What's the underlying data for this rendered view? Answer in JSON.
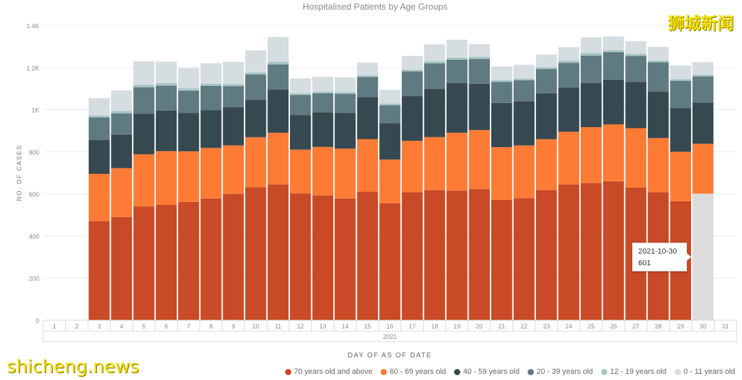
{
  "chart_data": {
    "type": "bar",
    "stacked": true,
    "title": "Hospitalised Patients by Age Groups",
    "ylabel": "NO. OF CASES",
    "xlabel": "DAY OF AS OF DATE",
    "year_label": "2021",
    "ylim": [
      0,
      1400
    ],
    "yticks": [
      {
        "value": 0,
        "label": "0"
      },
      {
        "value": 200,
        "label": "200"
      },
      {
        "value": 400,
        "label": "400"
      },
      {
        "value": 600,
        "label": "600"
      },
      {
        "value": 800,
        "label": "800"
      },
      {
        "value": 1000,
        "label": "1K"
      },
      {
        "value": 1200,
        "label": "1.2K"
      },
      {
        "value": 1400,
        "label": "1.4K"
      }
    ],
    "categories": [
      "1",
      "2",
      "3",
      "4",
      "5",
      "6",
      "7",
      "8",
      "9",
      "10",
      "11",
      "12",
      "13",
      "14",
      "15",
      "16",
      "17",
      "18",
      "19",
      "20",
      "21",
      "22",
      "23",
      "24",
      "25",
      "26",
      "27",
      "28",
      "29",
      "30",
      "31"
    ],
    "grid": true,
    "legend_position": "bottom",
    "series": [
      {
        "name": "70 years old and above",
        "color": "#c94a26",
        "values": [
          null,
          null,
          470,
          490,
          540,
          548,
          562,
          578,
          600,
          632,
          645,
          603,
          593,
          578,
          610,
          555,
          607,
          618,
          615,
          623,
          572,
          580,
          618,
          645,
          652,
          660,
          630,
          608,
          565,
          601,
          null
        ]
      },
      {
        "name": "60 - 69 years old",
        "color": "#fd7b35",
        "values": [
          null,
          null,
          225,
          232,
          248,
          255,
          240,
          240,
          230,
          237,
          245,
          207,
          230,
          237,
          250,
          208,
          245,
          252,
          275,
          280,
          250,
          250,
          242,
          250,
          265,
          270,
          282,
          257,
          235,
          237,
          null
        ]
      },
      {
        "name": "40 - 59 years old",
        "color": "#374950",
        "values": [
          null,
          null,
          160,
          160,
          193,
          193,
          183,
          180,
          182,
          178,
          205,
          165,
          165,
          170,
          200,
          173,
          212,
          228,
          237,
          220,
          210,
          210,
          218,
          210,
          210,
          213,
          220,
          220,
          207,
          195,
          null
        ]
      },
      {
        "name": "20 - 39 years old",
        "color": "#5f7a80",
        "values": [
          null,
          null,
          108,
          100,
          125,
          118,
          105,
          115,
          100,
          120,
          120,
          95,
          90,
          90,
          95,
          85,
          118,
          122,
          110,
          118,
          100,
          100,
          115,
          117,
          130,
          130,
          123,
          140,
          130,
          125,
          null
        ]
      },
      {
        "name": "12 - 19 years old",
        "color": "#a6c4c4",
        "values": [
          null,
          null,
          10,
          12,
          12,
          12,
          12,
          10,
          10,
          10,
          12,
          8,
          8,
          8,
          8,
          8,
          8,
          10,
          10,
          10,
          8,
          8,
          8,
          10,
          12,
          10,
          10,
          8,
          8,
          8,
          null
        ]
      },
      {
        "name": "0 - 11 years old",
        "color": "#d6dde0",
        "values": [
          null,
          null,
          82,
          98,
          112,
          102,
          95,
          97,
          105,
          104,
          118,
          70,
          70,
          70,
          60,
          65,
          65,
          80,
          85,
          60,
          65,
          65,
          60,
          65,
          75,
          65,
          60,
          65,
          65,
          60,
          null
        ]
      }
    ],
    "highlight": {
      "category": "30",
      "series": "70 years old and above",
      "value": 601,
      "date": "2021-10-30"
    }
  },
  "watermark_top": "狮城新闻",
  "watermark_bottom": "shicheng.news"
}
